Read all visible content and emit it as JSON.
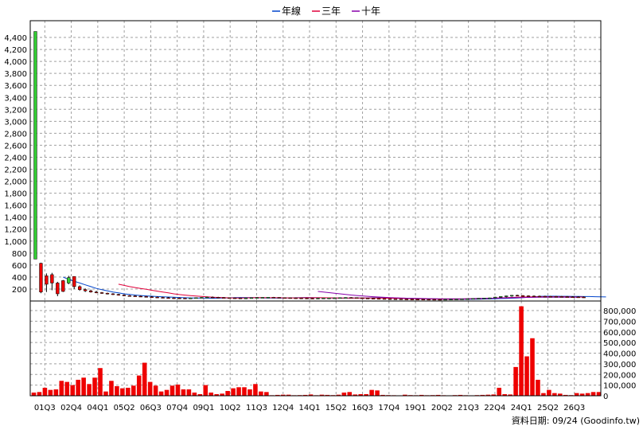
{
  "legend": [
    {
      "label": "年線",
      "color": "#0044cc"
    },
    {
      "label": "三年",
      "color": "#e0003a"
    },
    {
      "label": "十年",
      "color": "#8800aa"
    }
  ],
  "credit": "資料日期: 09/24  (Goodinfo.tw)",
  "chart_data": [
    {
      "type": "candlestick",
      "ylim": [
        0,
        4600
      ],
      "yticks": [
        "200",
        "400",
        "600",
        "800",
        "1,000",
        "1,200",
        "1,400",
        "1,600",
        "1,800",
        "2,000",
        "2,200",
        "2,400",
        "2,600",
        "2,800",
        "3,000",
        "3,200",
        "3,400",
        "3,600",
        "3,800",
        "4,000",
        "4,200",
        "4,400"
      ],
      "ytick_values": [
        200,
        400,
        600,
        800,
        1000,
        1200,
        1400,
        1600,
        1800,
        2000,
        2200,
        2400,
        2600,
        2800,
        3000,
        3200,
        3400,
        3600,
        3800,
        4000,
        4200,
        4400
      ],
      "grid": true,
      "candles": [
        {
          "o": 700,
          "h": 4500,
          "l": 700,
          "c": 4500
        },
        {
          "o": 630,
          "h": 640,
          "l": 130,
          "c": 150
        },
        {
          "o": 420,
          "h": 460,
          "l": 150,
          "c": 280
        },
        {
          "o": 440,
          "h": 470,
          "l": 180,
          "c": 300
        },
        {
          "o": 300,
          "h": 320,
          "l": 80,
          "c": 120
        },
        {
          "o": 340,
          "h": 350,
          "l": 150,
          "c": 160
        },
        {
          "o": 300,
          "h": 420,
          "l": 280,
          "c": 390
        },
        {
          "o": 410,
          "h": 410,
          "l": 200,
          "c": 240
        },
        {
          "o": 240,
          "h": 260,
          "l": 170,
          "c": 190
        },
        {
          "o": 190,
          "h": 210,
          "l": 150,
          "c": 170
        },
        {
          "o": 170,
          "h": 190,
          "l": 140,
          "c": 150
        },
        {
          "o": 150,
          "h": 170,
          "l": 130,
          "c": 140
        },
        {
          "o": 140,
          "h": 150,
          "l": 120,
          "c": 130
        },
        {
          "o": 130,
          "h": 140,
          "l": 110,
          "c": 120
        },
        {
          "o": 120,
          "h": 130,
          "l": 100,
          "c": 110
        },
        {
          "o": 110,
          "h": 120,
          "l": 90,
          "c": 100
        },
        {
          "o": 100,
          "h": 110,
          "l": 80,
          "c": 90
        },
        {
          "o": 90,
          "h": 100,
          "l": 80,
          "c": 85
        },
        {
          "o": 85,
          "h": 95,
          "l": 75,
          "c": 80
        },
        {
          "o": 80,
          "h": 90,
          "l": 70,
          "c": 75
        },
        {
          "o": 75,
          "h": 85,
          "l": 65,
          "c": 70
        },
        {
          "o": 70,
          "h": 80,
          "l": 60,
          "c": 65
        },
        {
          "o": 65,
          "h": 75,
          "l": 55,
          "c": 60
        },
        {
          "o": 60,
          "h": 70,
          "l": 50,
          "c": 55
        },
        {
          "o": 55,
          "h": 65,
          "l": 50,
          "c": 52
        },
        {
          "o": 52,
          "h": 60,
          "l": 45,
          "c": 50
        },
        {
          "o": 50,
          "h": 58,
          "l": 45,
          "c": 48
        },
        {
          "o": 48,
          "h": 55,
          "l": 42,
          "c": 46
        },
        {
          "o": 46,
          "h": 55,
          "l": 42,
          "c": 50
        },
        {
          "o": 50,
          "h": 60,
          "l": 45,
          "c": 55
        },
        {
          "o": 55,
          "h": 65,
          "l": 50,
          "c": 60
        },
        {
          "o": 60,
          "h": 70,
          "l": 55,
          "c": 65
        },
        {
          "o": 65,
          "h": 75,
          "l": 58,
          "c": 62
        },
        {
          "o": 62,
          "h": 70,
          "l": 55,
          "c": 58
        },
        {
          "o": 58,
          "h": 65,
          "l": 50,
          "c": 55
        },
        {
          "o": 55,
          "h": 60,
          "l": 48,
          "c": 52
        },
        {
          "o": 52,
          "h": 58,
          "l": 46,
          "c": 50
        },
        {
          "o": 50,
          "h": 56,
          "l": 45,
          "c": 48
        },
        {
          "o": 48,
          "h": 55,
          "l": 44,
          "c": 50
        },
        {
          "o": 50,
          "h": 58,
          "l": 46,
          "c": 54
        },
        {
          "o": 54,
          "h": 62,
          "l": 50,
          "c": 58
        },
        {
          "o": 58,
          "h": 65,
          "l": 52,
          "c": 60
        },
        {
          "o": 60,
          "h": 66,
          "l": 54,
          "c": 62
        },
        {
          "o": 62,
          "h": 68,
          "l": 55,
          "c": 60
        },
        {
          "o": 60,
          "h": 64,
          "l": 52,
          "c": 56
        },
        {
          "o": 56,
          "h": 60,
          "l": 50,
          "c": 54
        },
        {
          "o": 54,
          "h": 58,
          "l": 48,
          "c": 52
        },
        {
          "o": 52,
          "h": 56,
          "l": 46,
          "c": 50
        },
        {
          "o": 50,
          "h": 54,
          "l": 45,
          "c": 48
        },
        {
          "o": 48,
          "h": 52,
          "l": 44,
          "c": 46
        },
        {
          "o": 46,
          "h": 50,
          "l": 42,
          "c": 45
        },
        {
          "o": 45,
          "h": 50,
          "l": 42,
          "c": 47
        },
        {
          "o": 47,
          "h": 52,
          "l": 44,
          "c": 49
        },
        {
          "o": 49,
          "h": 54,
          "l": 45,
          "c": 50
        },
        {
          "o": 50,
          "h": 56,
          "l": 46,
          "c": 52
        },
        {
          "o": 52,
          "h": 60,
          "l": 48,
          "c": 55
        },
        {
          "o": 55,
          "h": 62,
          "l": 50,
          "c": 58
        },
        {
          "o": 58,
          "h": 64,
          "l": 52,
          "c": 56
        },
        {
          "o": 56,
          "h": 60,
          "l": 50,
          "c": 52
        },
        {
          "o": 52,
          "h": 56,
          "l": 46,
          "c": 48
        },
        {
          "o": 48,
          "h": 52,
          "l": 43,
          "c": 45
        },
        {
          "o": 45,
          "h": 48,
          "l": 40,
          "c": 42
        },
        {
          "o": 42,
          "h": 46,
          "l": 38,
          "c": 40
        },
        {
          "o": 40,
          "h": 44,
          "l": 36,
          "c": 38
        },
        {
          "o": 38,
          "h": 42,
          "l": 34,
          "c": 36
        },
        {
          "o": 36,
          "h": 40,
          "l": 32,
          "c": 35
        },
        {
          "o": 35,
          "h": 38,
          "l": 30,
          "c": 33
        },
        {
          "o": 33,
          "h": 36,
          "l": 29,
          "c": 32
        },
        {
          "o": 32,
          "h": 35,
          "l": 28,
          "c": 31
        },
        {
          "o": 31,
          "h": 34,
          "l": 28,
          "c": 30
        },
        {
          "o": 30,
          "h": 33,
          "l": 27,
          "c": 29
        },
        {
          "o": 29,
          "h": 32,
          "l": 26,
          "c": 28
        },
        {
          "o": 28,
          "h": 31,
          "l": 25,
          "c": 27
        },
        {
          "o": 27,
          "h": 30,
          "l": 24,
          "c": 26
        },
        {
          "o": 26,
          "h": 30,
          "l": 24,
          "c": 28
        },
        {
          "o": 28,
          "h": 32,
          "l": 25,
          "c": 30
        },
        {
          "o": 30,
          "h": 34,
          "l": 27,
          "c": 32
        },
        {
          "o": 32,
          "h": 36,
          "l": 29,
          "c": 34
        },
        {
          "o": 34,
          "h": 40,
          "l": 30,
          "c": 38
        },
        {
          "o": 38,
          "h": 44,
          "l": 34,
          "c": 42
        },
        {
          "o": 42,
          "h": 48,
          "l": 38,
          "c": 45
        },
        {
          "o": 45,
          "h": 52,
          "l": 40,
          "c": 48
        },
        {
          "o": 48,
          "h": 56,
          "l": 44,
          "c": 52
        },
        {
          "o": 52,
          "h": 70,
          "l": 48,
          "c": 65
        },
        {
          "o": 65,
          "h": 80,
          "l": 55,
          "c": 75
        },
        {
          "o": 75,
          "h": 90,
          "l": 60,
          "c": 85
        },
        {
          "o": 85,
          "h": 100,
          "l": 70,
          "c": 95
        },
        {
          "o": 95,
          "h": 105,
          "l": 80,
          "c": 90
        },
        {
          "o": 90,
          "h": 98,
          "l": 80,
          "c": 86
        },
        {
          "o": 86,
          "h": 95,
          "l": 78,
          "c": 82
        },
        {
          "o": 82,
          "h": 92,
          "l": 76,
          "c": 80
        },
        {
          "o": 80,
          "h": 90,
          "l": 74,
          "c": 78
        },
        {
          "o": 78,
          "h": 88,
          "l": 72,
          "c": 76
        },
        {
          "o": 76,
          "h": 86,
          "l": 70,
          "c": 75
        },
        {
          "o": 75,
          "h": 85,
          "l": 70,
          "c": 74
        },
        {
          "o": 74,
          "h": 84,
          "l": 68,
          "c": 72
        },
        {
          "o": 72,
          "h": 82,
          "l": 66,
          "c": 70
        },
        {
          "o": 70,
          "h": 80,
          "l": 65,
          "c": 68
        },
        {
          "o": 68,
          "h": 78,
          "l": 62,
          "c": 66
        },
        {
          "o": 66,
          "h": 76,
          "l": 60,
          "c": 64
        }
      ],
      "series": [
        {
          "name": "年線",
          "color": "#0044cc",
          "start": 5,
          "values": [
            400,
            360,
            330,
            300,
            270,
            240,
            210,
            190,
            170,
            150,
            135,
            120,
            110,
            100,
            92,
            85,
            80,
            75,
            70,
            66,
            62,
            58,
            55,
            52,
            50,
            49,
            48,
            47,
            48,
            50,
            53,
            56,
            58,
            58,
            56,
            54,
            52,
            50,
            49,
            48,
            50,
            52,
            55,
            57,
            58,
            57,
            55,
            53,
            51,
            49,
            48,
            47,
            48,
            49,
            50,
            52,
            54,
            55,
            54,
            52,
            49,
            46,
            43,
            41,
            39,
            37,
            35,
            34,
            32,
            31,
            30,
            29,
            28,
            28,
            29,
            31,
            33,
            35,
            38,
            41,
            44,
            47,
            51,
            56,
            63,
            70,
            76,
            80,
            80,
            80,
            79,
            78,
            77,
            76,
            75,
            74,
            72,
            70,
            68
          ]
        },
        {
          "name": "三年",
          "color": "#e0003a",
          "start": 15,
          "values": [
            280,
            260,
            240,
            225,
            210,
            195,
            180,
            165,
            150,
            135,
            120,
            108,
            98,
            90,
            83,
            76,
            70,
            64,
            60,
            56,
            53,
            51,
            51,
            52,
            54,
            56,
            56,
            55,
            55,
            54,
            53,
            52,
            52,
            53,
            54,
            55,
            55,
            54,
            53,
            52,
            51,
            50,
            49,
            49,
            50,
            51,
            51,
            50,
            48,
            46,
            44,
            42,
            40,
            38,
            36,
            34,
            33,
            32,
            31,
            30,
            30,
            31,
            32,
            34,
            36,
            38,
            41,
            44,
            48,
            52,
            56,
            60,
            63,
            66,
            68,
            69,
            70,
            70,
            70,
            70,
            70,
            69,
            68,
            67,
            66
          ]
        },
        {
          "name": "十年",
          "color": "#8800aa",
          "start": 51,
          "values": [
            160,
            150,
            140,
            130,
            120,
            110,
            100,
            92,
            85,
            78,
            72,
            66,
            61,
            57,
            53,
            50,
            47,
            45,
            43,
            41,
            39,
            38,
            37,
            36,
            36,
            36,
            37,
            38,
            40,
            42,
            44,
            46,
            48,
            50,
            52,
            54,
            56,
            58,
            60,
            61,
            62,
            63,
            64,
            64,
            64,
            64,
            64,
            64
          ]
        }
      ]
    },
    {
      "type": "bar",
      "ylim": [
        0,
        800000
      ],
      "yticks": [
        "0",
        "100,000",
        "200,000",
        "300,000",
        "400,000",
        "500,000",
        "600,000",
        "700,000",
        "800,000"
      ],
      "ytick_values": [
        0,
        100000,
        200000,
        300000,
        400000,
        500000,
        600000,
        700000,
        800000
      ],
      "grid": true,
      "color": "#ee0000",
      "values": [
        30000,
        35000,
        75000,
        55000,
        60000,
        140000,
        130000,
        100000,
        150000,
        170000,
        110000,
        170000,
        260000,
        40000,
        140000,
        90000,
        70000,
        75000,
        95000,
        190000,
        310000,
        130000,
        95000,
        40000,
        55000,
        95000,
        105000,
        60000,
        60000,
        30000,
        15000,
        100000,
        30000,
        15000,
        20000,
        45000,
        70000,
        80000,
        80000,
        60000,
        110000,
        40000,
        35000,
        5000,
        8000,
        10000,
        10000,
        5000,
        6000,
        8000,
        12000,
        5000,
        10000,
        8000,
        6000,
        10000,
        30000,
        35000,
        12000,
        15000,
        15000,
        55000,
        50000,
        8000,
        6000,
        5000,
        4000,
        10000,
        6000,
        5000,
        8000,
        5000,
        6000,
        8000,
        5000,
        4000,
        6000,
        8000,
        5000,
        4000,
        6000,
        8000,
        10000,
        12000,
        75000,
        15000,
        12000,
        270000,
        840000,
        370000,
        540000,
        150000,
        25000,
        55000,
        25000,
        20000,
        8000,
        6000,
        25000,
        20000,
        25000,
        35000,
        35000
      ]
    }
  ],
  "xaxis": {
    "tick_labels": [
      "01Q3",
      "02Q4",
      "04Q1",
      "05Q2",
      "06Q3",
      "07Q4",
      "09Q1",
      "10Q2",
      "11Q3",
      "12Q4",
      "14Q1",
      "15Q2",
      "16Q3",
      "17Q4",
      "19Q1",
      "20Q2",
      "21Q3",
      "22Q4",
      "24Q1",
      "25Q2",
      "26Q3"
    ]
  }
}
